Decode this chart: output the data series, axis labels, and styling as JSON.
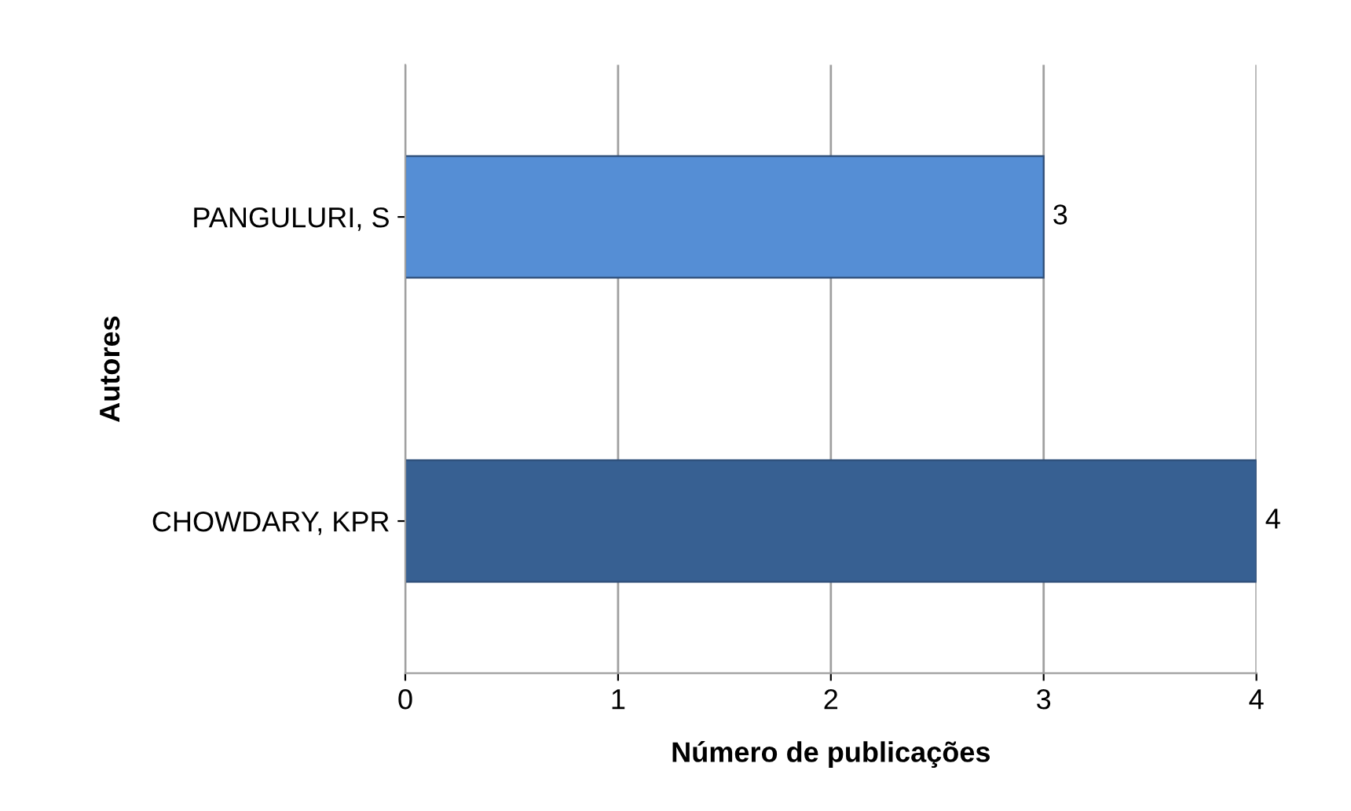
{
  "chart_data": {
    "type": "bar",
    "orientation": "horizontal",
    "xlabel": "Número de publicações",
    "ylabel": "Autores",
    "categories": [
      "PANGULURI, S",
      "CHOWDARY, KPR"
    ],
    "values": [
      3,
      4
    ],
    "colors": [
      "#558ed5",
      "#376092"
    ],
    "xlim": [
      0,
      4
    ],
    "xticks": [
      0,
      1,
      2,
      3,
      4
    ],
    "grid": "x",
    "data_labels": true
  }
}
